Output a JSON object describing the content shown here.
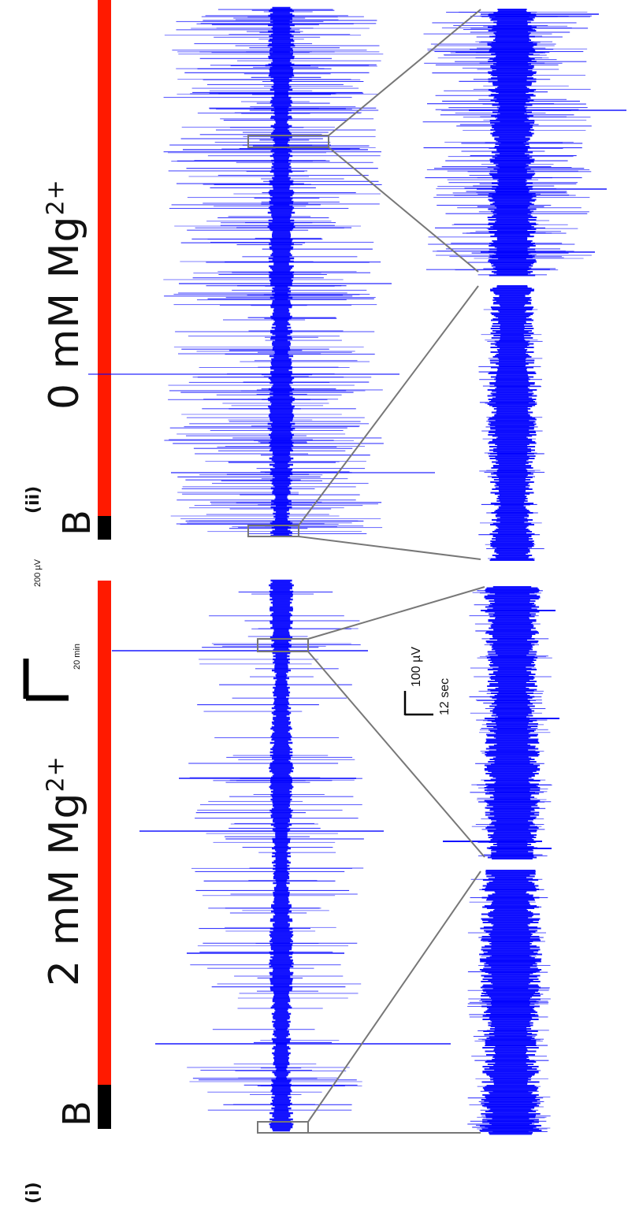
{
  "chart_data": {
    "type": "line",
    "panels": [
      {
        "id": "i",
        "panel_label": "(i)",
        "baseline_label": "B",
        "condition": {
          "text": "2 mM Mg",
          "superscript": "2+"
        },
        "baseline_color": "#000000",
        "condition_color": "#ff1a00",
        "trace_color": "#0000ff",
        "series": [
          {
            "view": "overview",
            "spikes": "sparse, large isolated spikes"
          },
          {
            "view": "zoom-baseline",
            "spikes": "none"
          },
          {
            "view": "zoom-condition",
            "spikes": "few large spikes"
          }
        ]
      },
      {
        "id": "ii",
        "panel_label": "(ii)",
        "baseline_label": "B",
        "condition": {
          "text": "0 mM Mg",
          "superscript": "2+"
        },
        "baseline_color": "#000000",
        "condition_color": "#ff1a00",
        "trace_color": "#0000ff",
        "series": [
          {
            "view": "overview",
            "spikes": "dense, frequent spikes"
          },
          {
            "view": "zoom-baseline",
            "spikes": "none"
          },
          {
            "view": "zoom-condition",
            "spikes": "bursting activity"
          }
        ]
      }
    ],
    "scale_bars": {
      "overview": {
        "amplitude": "200 µV",
        "time": "20 min"
      },
      "zoom": {
        "amplitude": "100 µV",
        "time": "12 sec"
      }
    }
  }
}
